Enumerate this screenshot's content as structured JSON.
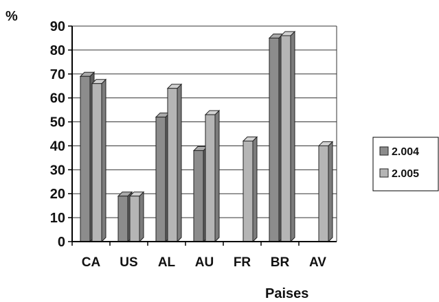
{
  "chart_data": {
    "type": "bar",
    "style": "3d-clustered",
    "categories": [
      "CA",
      "US",
      "AL",
      "AU",
      "FR",
      "BR",
      "AV"
    ],
    "series": [
      {
        "name": "2.004",
        "values": [
          69,
          19,
          52,
          38,
          0,
          85,
          0
        ]
      },
      {
        "name": "2.005",
        "values": [
          66,
          19,
          64,
          53,
          42,
          86,
          40
        ]
      }
    ],
    "ylim": [
      0,
      90
    ],
    "yticks": [
      0,
      10,
      20,
      30,
      40,
      50,
      60,
      70,
      80,
      90
    ],
    "ylabel": "%",
    "xlabel": "Paises",
    "grid": true,
    "legend_position": "right",
    "colors": {
      "series_front": [
        "#8c8c8c",
        "#b5b5b5"
      ],
      "series_side": [
        "#5e5e5e",
        "#7c7c7c"
      ],
      "series_top": [
        "#a9a9a9",
        "#d2d2d2"
      ],
      "grid": "#333333",
      "axis": "#000000"
    }
  }
}
